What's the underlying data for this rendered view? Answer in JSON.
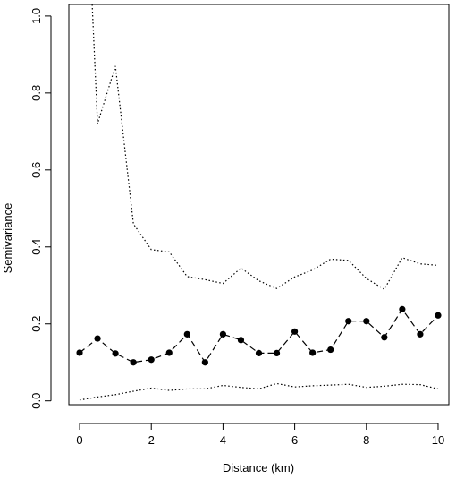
{
  "chart_data": {
    "type": "line",
    "title": "",
    "xlabel": "Distance (km)",
    "ylabel": "Semivariance",
    "xlim": [
      -0.3,
      10.3
    ],
    "ylim": [
      -0.01,
      1.03
    ],
    "x_ticks": [
      0,
      2,
      4,
      6,
      8,
      10
    ],
    "y_ticks": [
      0.0,
      0.2,
      0.4,
      0.6,
      0.8,
      1.0
    ],
    "x_tick_labels": [
      "0",
      "2",
      "4",
      "6",
      "8",
      "10"
    ],
    "y_tick_labels": [
      "0.0",
      "0.2",
      "0.4",
      "0.6",
      "0.8",
      "1.0"
    ],
    "grid": false,
    "legend": "none",
    "series": [
      {
        "style": "dashed-with-points",
        "color": "#000000",
        "x": [
          0,
          0.5,
          1,
          1.5,
          2,
          2.5,
          3,
          3.5,
          4,
          4.5,
          5,
          5.5,
          6,
          6.5,
          7,
          7.5,
          8,
          8.5,
          9,
          9.5,
          10
        ],
        "y": [
          0.125,
          0.162,
          0.123,
          0.1,
          0.107,
          0.125,
          0.173,
          0.1,
          0.173,
          0.158,
          0.124,
          0.124,
          0.18,
          0.125,
          0.133,
          0.207,
          0.207,
          0.165,
          0.238,
          0.173,
          0.222
        ]
      },
      {
        "style": "dotted",
        "color": "#000000",
        "x": [
          0.35,
          0.5,
          1,
          1.5,
          2,
          2.5,
          3,
          3.5,
          4,
          4.5,
          5,
          5.5,
          6,
          6.5,
          7,
          7.5,
          8,
          8.5,
          9,
          9.5,
          10
        ],
        "y": [
          1.03,
          0.72,
          0.87,
          0.46,
          0.393,
          0.387,
          0.323,
          0.315,
          0.305,
          0.345,
          0.312,
          0.292,
          0.322,
          0.34,
          0.368,
          0.365,
          0.318,
          0.29,
          0.372,
          0.356,
          0.352
        ]
      },
      {
        "style": "dotted",
        "color": "#000000",
        "x": [
          0,
          0.5,
          1,
          1.5,
          2,
          2.5,
          3,
          3.5,
          4,
          4.5,
          5,
          5.5,
          6,
          6.5,
          7,
          7.5,
          8,
          8.5,
          9,
          9.5,
          10
        ],
        "y": [
          0.002,
          0.01,
          0.016,
          0.025,
          0.033,
          0.027,
          0.031,
          0.031,
          0.04,
          0.035,
          0.031,
          0.045,
          0.036,
          0.039,
          0.041,
          0.043,
          0.035,
          0.038,
          0.043,
          0.042,
          0.031
        ]
      }
    ]
  }
}
